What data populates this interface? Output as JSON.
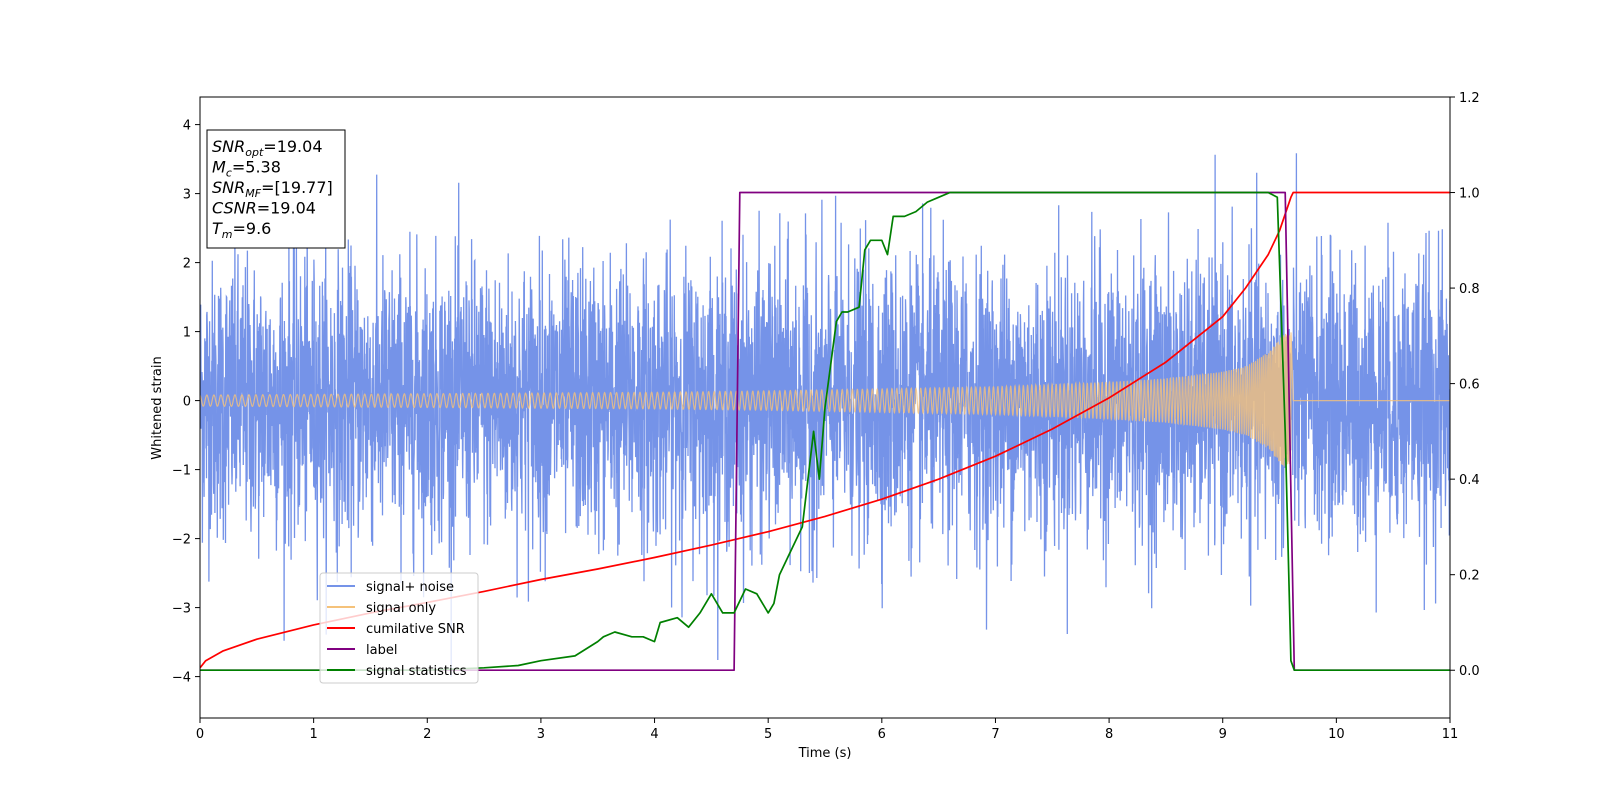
{
  "chart_data": {
    "type": "line",
    "xlabel": "Time (s)",
    "ylabel": "Whitened strain",
    "xlim": [
      0,
      11
    ],
    "ylim_left": [
      -4.6,
      4.4
    ],
    "ylim_right": [
      -0.1,
      1.2
    ],
    "x_ticks": [
      0,
      1,
      2,
      3,
      4,
      5,
      6,
      7,
      8,
      9,
      10,
      11
    ],
    "y_ticks_left": [
      -4,
      -3,
      -2,
      -1,
      0,
      1,
      2,
      3,
      4
    ],
    "y_ticks_right": [
      0.0,
      0.2,
      0.4,
      0.6,
      0.8,
      1.0,
      1.2
    ],
    "legend_position": "lower-left",
    "grid": false,
    "stats_box": {
      "lines": [
        {
          "sym": "SNR",
          "sub": "opt",
          "val": "=19.04"
        },
        {
          "sym": "M",
          "sub": "c",
          "val": "=5.38"
        },
        {
          "sym": "SNR",
          "sub": "MF",
          "val": "=[19.77]"
        },
        {
          "sym": "CSNR",
          "sub": "",
          "val": "=19.04"
        },
        {
          "sym": "T",
          "sub": "m",
          "val": "=9.6"
        }
      ]
    },
    "series": [
      {
        "name": "signal+ noise",
        "axis": "left",
        "color": "#7593e8",
        "kind": "noise",
        "x_range": [
          0,
          11
        ],
        "amplitude_typical": 1.3,
        "amplitude_max": 4.0
      },
      {
        "name": "signal only",
        "axis": "left",
        "color": "#f5c27a",
        "kind": "chirp",
        "x_range": [
          0,
          11
        ],
        "merger_time": 9.6,
        "envelope": {
          "x": [
            0,
            1,
            2,
            3,
            4,
            5,
            6,
            7,
            8,
            8.5,
            9,
            9.2,
            9.4,
            9.5,
            9.6,
            9.62,
            11
          ],
          "y": [
            0.08,
            0.09,
            0.1,
            0.11,
            0.12,
            0.14,
            0.17,
            0.2,
            0.27,
            0.32,
            0.42,
            0.5,
            0.7,
            0.9,
            1.05,
            0.0,
            0.0
          ]
        }
      },
      {
        "name": "cumilative SNR",
        "axis": "right",
        "color": "#ff0000",
        "x": [
          0,
          0.05,
          0.2,
          0.5,
          1,
          1.5,
          2,
          2.5,
          3,
          3.5,
          4,
          4.5,
          5,
          5.5,
          6,
          6.5,
          7,
          7.5,
          8,
          8.5,
          9,
          9.2,
          9.4,
          9.5,
          9.6,
          9.62,
          11
        ],
        "values": [
          0.005,
          0.02,
          0.04,
          0.065,
          0.095,
          0.12,
          0.142,
          0.165,
          0.19,
          0.212,
          0.236,
          0.262,
          0.29,
          0.322,
          0.358,
          0.4,
          0.448,
          0.505,
          0.57,
          0.645,
          0.74,
          0.8,
          0.87,
          0.92,
          0.99,
          1.0,
          1.0
        ]
      },
      {
        "name": "label",
        "axis": "right",
        "color": "#800080",
        "x": [
          0,
          4.7,
          4.75,
          9.55,
          9.63,
          11
        ],
        "values": [
          0,
          0,
          1,
          1,
          0,
          0
        ]
      },
      {
        "name": "signal statistics",
        "axis": "right",
        "color": "#008000",
        "x": [
          0,
          1,
          2,
          2.5,
          2.8,
          3.0,
          3.3,
          3.5,
          3.55,
          3.65,
          3.8,
          3.9,
          4.0,
          4.05,
          4.2,
          4.3,
          4.4,
          4.5,
          4.6,
          4.7,
          4.8,
          4.9,
          5.0,
          5.05,
          5.1,
          5.2,
          5.3,
          5.4,
          5.45,
          5.5,
          5.6,
          5.65,
          5.7,
          5.8,
          5.85,
          5.9,
          5.95,
          6.0,
          6.05,
          6.1,
          6.2,
          6.3,
          6.4,
          6.5,
          6.6,
          7.0,
          8.0,
          9.0,
          9.4,
          9.48,
          9.55,
          9.6,
          9.63,
          11
        ],
        "values": [
          0.0,
          0.0,
          0.0,
          0.005,
          0.01,
          0.02,
          0.03,
          0.06,
          0.07,
          0.08,
          0.07,
          0.07,
          0.06,
          0.1,
          0.11,
          0.09,
          0.12,
          0.16,
          0.12,
          0.12,
          0.17,
          0.16,
          0.12,
          0.14,
          0.2,
          0.25,
          0.3,
          0.5,
          0.4,
          0.55,
          0.73,
          0.75,
          0.75,
          0.76,
          0.88,
          0.9,
          0.9,
          0.9,
          0.87,
          0.95,
          0.95,
          0.96,
          0.98,
          0.99,
          1.0,
          1.0,
          1.0,
          1.0,
          1.0,
          0.99,
          0.5,
          0.02,
          0.0,
          0.0
        ]
      }
    ]
  }
}
